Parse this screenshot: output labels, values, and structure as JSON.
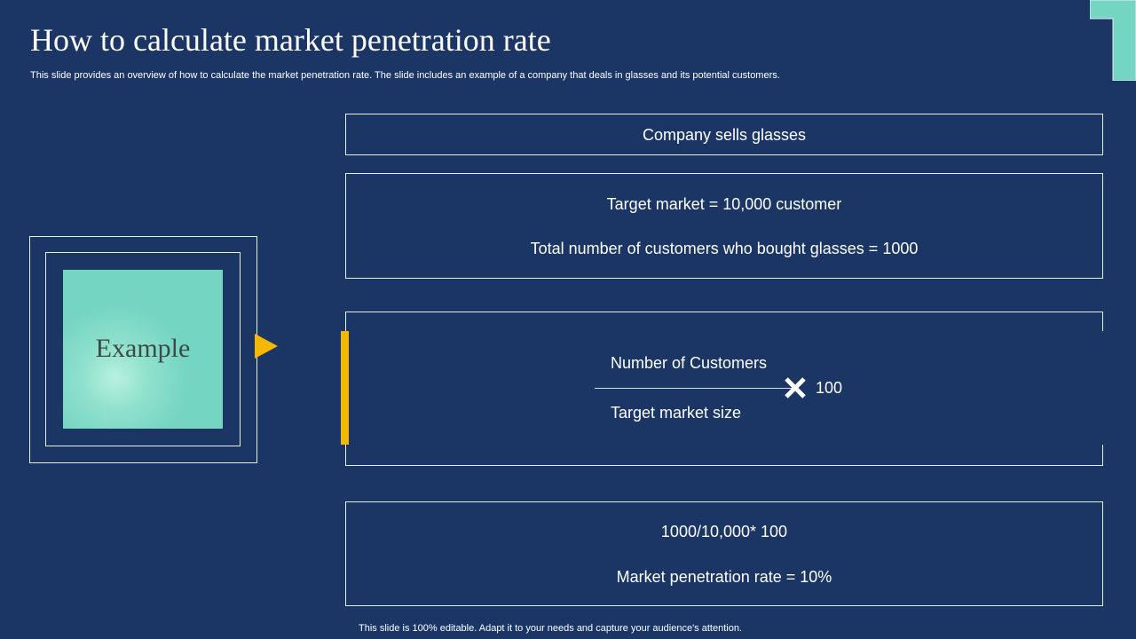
{
  "slide": {
    "title": "How to calculate market penetration rate",
    "subtitle": "This slide provides an overview of how to calculate the market penetration rate. The slide includes an example of a company that deals in glasses and its potential customers.",
    "footer": "This slide is 100% editable. Adapt it to your needs and capture your audience's attention."
  },
  "example": {
    "label": "Example"
  },
  "steps": {
    "company": "Company sells glasses",
    "target_market": "Target market = 10,000 customer",
    "total_customers": "Total number of customers who bought glasses = 1000",
    "formula_numerator": "Number of Customers",
    "formula_denominator": "Target market size",
    "formula_multiplier": "100",
    "calculation": "1000/10,000* 100",
    "result": "Market penetration rate = 10%"
  },
  "colors": {
    "background": "#1b3665",
    "accent_teal": "#74d5c2",
    "accent_yellow": "#f5b800",
    "text": "#ffffff"
  },
  "icons": {
    "multiply": "multiply-icon",
    "arrow": "arrow-right-icon"
  }
}
